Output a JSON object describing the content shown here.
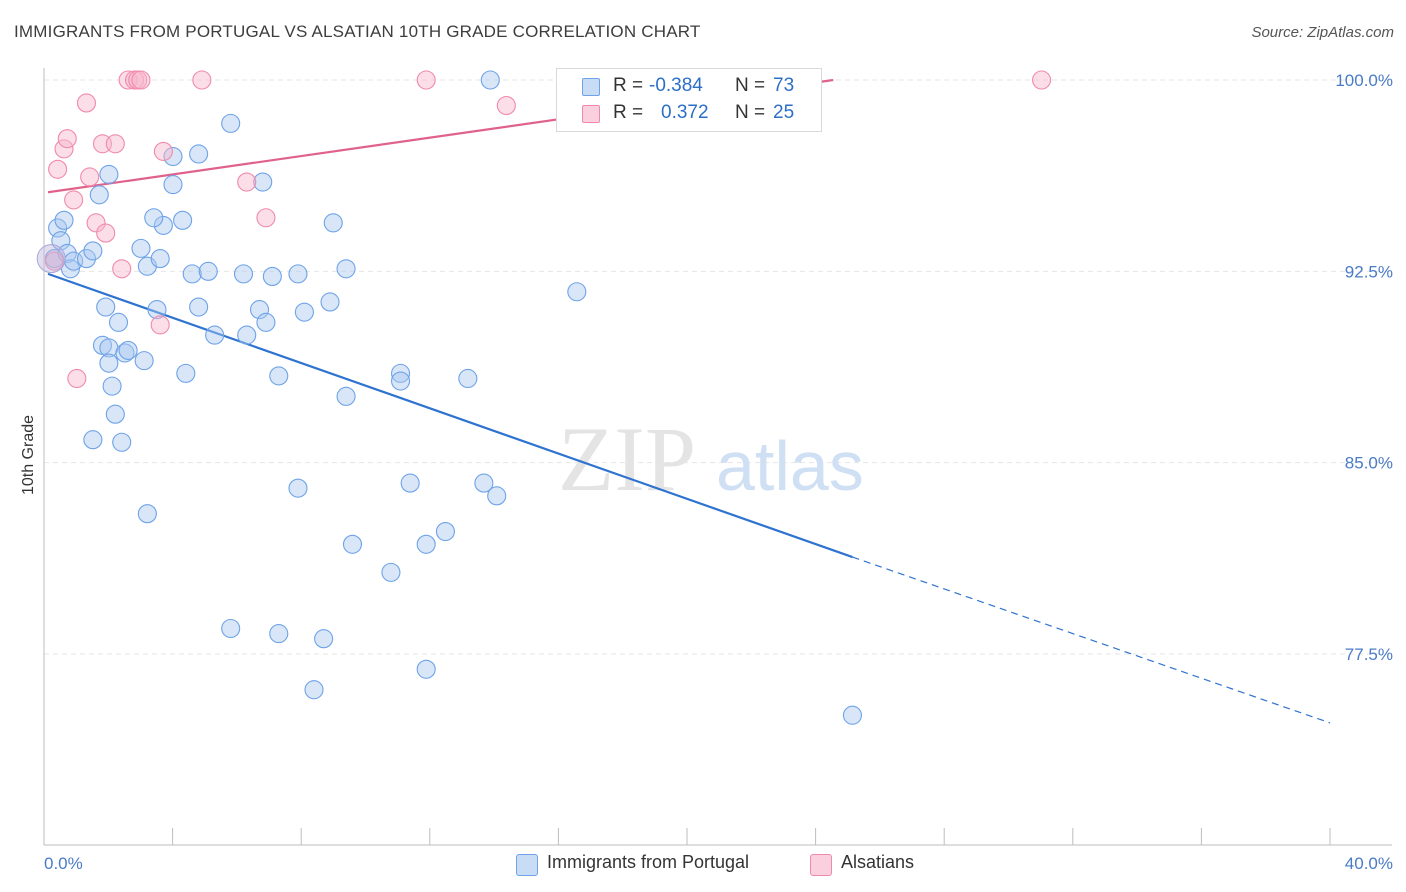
{
  "header": {
    "title": "IMMIGRANTS FROM PORTUGAL VS ALSATIAN 10TH GRADE CORRELATION CHART",
    "source": "Source: ZipAtlas.com"
  },
  "watermark": {
    "zip": "ZIP",
    "atlas": "atlas"
  },
  "legend": {
    "r_label": "R =",
    "n_label": "N =",
    "rows": [
      {
        "r": "-0.384",
        "n": "73",
        "color": "#6ea3e8"
      },
      {
        "r": "0.372",
        "n": "25",
        "color": "#f08aaa"
      }
    ]
  },
  "bottom_legend": [
    {
      "label": "Immigrants from Portugal",
      "color": "#6ea3e8"
    },
    {
      "label": "Alsatians",
      "color": "#f08aaa"
    }
  ],
  "chart_data": {
    "type": "scatter",
    "title": "IMMIGRANTS FROM PORTUGAL VS ALSATIAN 10TH GRADE CORRELATION CHART",
    "xlabel": "",
    "ylabel": "10th Grade",
    "xlim": [
      0,
      40
    ],
    "ylim": [
      71.5,
      101.2
    ],
    "x_tick_labels": [
      "0.0%",
      "40.0%"
    ],
    "y_ticks": [
      77.5,
      85.0,
      92.5,
      100.0
    ],
    "y_tick_labels": [
      "77.5%",
      "85.0%",
      "92.5%",
      "100.0%"
    ],
    "grid": "horizontal dashed",
    "legend_position": "top-center",
    "series": [
      {
        "name": "Immigrants from Portugal",
        "color": "#6ea3e8",
        "line_color": "#2f73d0",
        "r": -0.384,
        "n": 73,
        "trend": {
          "x0": 0,
          "y0": 92.4,
          "x1": 25.1,
          "y1": 81.3,
          "dash_x1": 40,
          "dash_y1": 74.8
        },
        "points": [
          [
            0.2,
            93.0
          ],
          [
            0.3,
            94.2
          ],
          [
            0.4,
            93.7
          ],
          [
            0.5,
            94.5
          ],
          [
            0.6,
            93.2
          ],
          [
            0.7,
            92.6
          ],
          [
            0.8,
            92.9
          ],
          [
            1.2,
            93.0
          ],
          [
            1.4,
            93.3
          ],
          [
            1.6,
            95.5
          ],
          [
            1.9,
            96.3
          ],
          [
            1.8,
            91.1
          ],
          [
            2.2,
            90.5
          ],
          [
            1.7,
            89.6
          ],
          [
            1.9,
            89.5
          ],
          [
            2.4,
            89.3
          ],
          [
            2.5,
            89.4
          ],
          [
            1.9,
            88.9
          ],
          [
            3.0,
            89.0
          ],
          [
            2.0,
            88.0
          ],
          [
            2.1,
            86.9
          ],
          [
            1.4,
            85.9
          ],
          [
            2.3,
            85.8
          ],
          [
            3.1,
            92.7
          ],
          [
            2.9,
            93.4
          ],
          [
            3.5,
            93.0
          ],
          [
            3.4,
            91.0
          ],
          [
            3.6,
            94.3
          ],
          [
            3.3,
            94.6
          ],
          [
            4.2,
            94.5
          ],
          [
            3.9,
            95.9
          ],
          [
            3.9,
            97.0
          ],
          [
            4.7,
            97.1
          ],
          [
            5.7,
            98.3
          ],
          [
            6.7,
            96.0
          ],
          [
            4.3,
            88.5
          ],
          [
            4.5,
            92.4
          ],
          [
            4.7,
            91.1
          ],
          [
            5.0,
            92.5
          ],
          [
            5.2,
            90.0
          ],
          [
            6.1,
            92.4
          ],
          [
            6.6,
            91.0
          ],
          [
            6.8,
            90.5
          ],
          [
            6.2,
            90.0
          ],
          [
            7.0,
            92.3
          ],
          [
            7.2,
            88.4
          ],
          [
            7.8,
            92.4
          ],
          [
            8.0,
            90.9
          ],
          [
            8.8,
            91.3
          ],
          [
            8.9,
            94.4
          ],
          [
            9.3,
            92.6
          ],
          [
            9.3,
            87.6
          ],
          [
            11.0,
            88.5
          ],
          [
            11.0,
            88.2
          ],
          [
            13.1,
            88.3
          ],
          [
            13.8,
            100.0
          ],
          [
            16.5,
            91.7
          ],
          [
            7.8,
            84.0
          ],
          [
            11.3,
            84.2
          ],
          [
            13.6,
            84.2
          ],
          [
            14.0,
            83.7
          ],
          [
            3.1,
            83.0
          ],
          [
            9.5,
            81.8
          ],
          [
            11.8,
            81.8
          ],
          [
            12.4,
            82.3
          ],
          [
            10.7,
            80.7
          ],
          [
            5.7,
            78.5
          ],
          [
            7.2,
            78.3
          ],
          [
            8.6,
            78.1
          ],
          [
            8.3,
            76.1
          ],
          [
            11.8,
            76.9
          ],
          [
            25.1,
            75.1
          ],
          [
            16.5,
            99.95
          ]
        ]
      },
      {
        "name": "Alsatians",
        "color": "#f08aaa",
        "line_color": "#e0628a",
        "r": 0.372,
        "n": 25,
        "trend": {
          "x0": 0,
          "y0": 95.6,
          "x1": 24.5,
          "y1": 100.0
        },
        "points": [
          [
            0.2,
            92.9
          ],
          [
            0.3,
            96.5
          ],
          [
            0.5,
            97.3
          ],
          [
            0.6,
            97.7
          ],
          [
            0.8,
            95.3
          ],
          [
            1.2,
            99.1
          ],
          [
            1.3,
            96.2
          ],
          [
            1.5,
            94.4
          ],
          [
            1.7,
            97.5
          ],
          [
            1.8,
            94.0
          ],
          [
            2.1,
            97.5
          ],
          [
            2.3,
            92.6
          ],
          [
            2.5,
            100.0
          ],
          [
            2.7,
            100.0
          ],
          [
            2.8,
            100.0
          ],
          [
            2.9,
            100.0
          ],
          [
            3.5,
            90.4
          ],
          [
            3.6,
            97.2
          ],
          [
            4.8,
            100.0
          ],
          [
            6.2,
            96.0
          ],
          [
            6.8,
            94.6
          ],
          [
            11.8,
            100.0
          ],
          [
            14.3,
            99.0
          ],
          [
            31.0,
            100.0
          ],
          [
            0.9,
            88.3
          ]
        ]
      }
    ]
  }
}
